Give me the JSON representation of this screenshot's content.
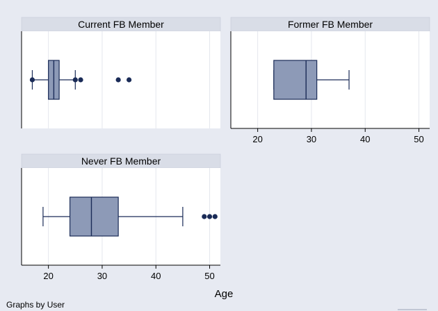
{
  "note": "Graphs by User",
  "colors": {
    "background": "#e7eaf2",
    "plot_bg": "#ffffff",
    "strip": "#d9dde7",
    "grid": "#e4e7ee",
    "box_fill": "#8d9ab7",
    "line": "#1a2b57",
    "axis": "#000000"
  },
  "chart_data": {
    "type": "box",
    "xlabel": "Age",
    "xlim": [
      15,
      52
    ],
    "xticks": [
      20,
      30,
      40,
      50
    ],
    "grid": true,
    "panels": [
      {
        "title": "Current FB Member",
        "show_xticks": false,
        "box": {
          "lower_whisker": 17,
          "q1": 20,
          "median": 21,
          "q3": 22,
          "upper_whisker": 25
        },
        "outliers": [
          17,
          25,
          26,
          33,
          35
        ]
      },
      {
        "title": "Former FB Member",
        "show_xticks": true,
        "box": {
          "lower_whisker": 23,
          "q1": 23,
          "median": 29,
          "q3": 31,
          "upper_whisker": 37
        },
        "outliers": []
      },
      {
        "title": "Never FB Member",
        "show_xticks": true,
        "box": {
          "lower_whisker": 19,
          "q1": 24,
          "median": 28,
          "q3": 33,
          "upper_whisker": 45
        },
        "outliers": [
          49,
          50,
          51
        ]
      }
    ]
  }
}
